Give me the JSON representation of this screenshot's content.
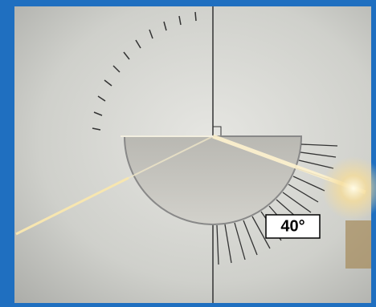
{
  "label": "40°"
}
